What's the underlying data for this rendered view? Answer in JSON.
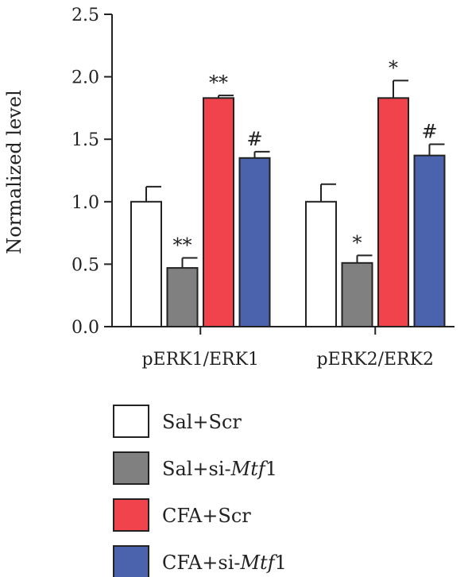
{
  "chart_data": {
    "type": "bar",
    "ylabel": "Normalized level",
    "ylim": [
      0,
      2.5
    ],
    "yticks": [
      "0.0",
      "0.5",
      "1.0",
      "1.5",
      "2.0",
      "2.5"
    ],
    "categories": [
      "pERK1/ERK1",
      "pERK2/ERK2"
    ],
    "series": [
      {
        "name": "Sal+Scr",
        "color": "#ffffff",
        "values": [
          1.0,
          1.0
        ],
        "errors": [
          0.12,
          0.14
        ],
        "marks": [
          "",
          ""
        ]
      },
      {
        "name": "Sal+si-",
        "name_italic": "Mtf",
        "name_tail": "1",
        "color": "#808080",
        "values": [
          0.47,
          0.51
        ],
        "errors": [
          0.08,
          0.06
        ],
        "marks": [
          "**",
          "*"
        ]
      },
      {
        "name": "CFA+Scr",
        "color": "#f0434c",
        "values": [
          1.83,
          1.83
        ],
        "errors": [
          0.02,
          0.14
        ],
        "marks": [
          "**",
          "*"
        ]
      },
      {
        "name": "CFA+si-",
        "name_italic": "Mtf",
        "name_tail": "1",
        "color": "#4b63ad",
        "values": [
          1.35,
          1.37
        ],
        "errors": [
          0.05,
          0.09
        ],
        "marks": [
          "#",
          "#"
        ]
      }
    ],
    "legend_position": "bottom-left"
  }
}
